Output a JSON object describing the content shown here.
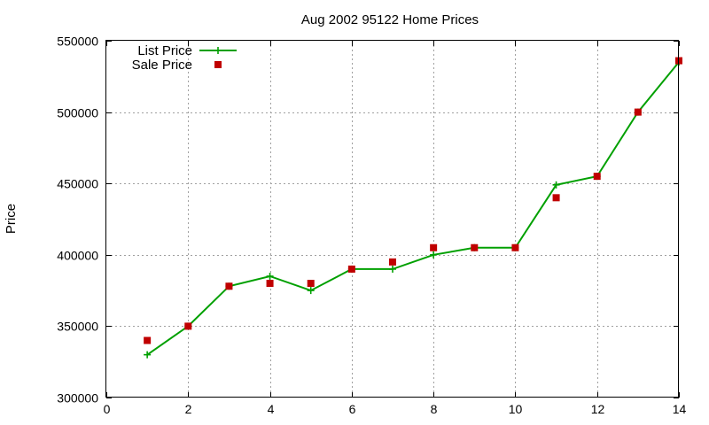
{
  "chart_data": {
    "type": "line",
    "title": "Aug 2002 95122 Home Prices",
    "xlabel": "",
    "ylabel": "Price",
    "xlim": [
      0,
      14
    ],
    "ylim": [
      300000,
      550000
    ],
    "xticks": [
      0,
      2,
      4,
      6,
      8,
      10,
      12,
      14
    ],
    "yticks": [
      300000,
      350000,
      400000,
      450000,
      500000,
      550000
    ],
    "grid": true,
    "legend_position": "top-left",
    "series": [
      {
        "name": "List Price",
        "style": "linespoints",
        "marker": "plus",
        "color": "#00a000",
        "x": [
          1,
          2,
          3,
          4,
          5,
          6,
          7,
          8,
          9,
          10,
          11,
          12,
          13,
          14
        ],
        "y": [
          330000,
          350000,
          378000,
          385000,
          375000,
          390000,
          390000,
          400000,
          405000,
          405000,
          449000,
          455000,
          500000,
          535000
        ]
      },
      {
        "name": "Sale Price",
        "style": "points",
        "marker": "square",
        "color": "#c00000",
        "x": [
          1,
          2,
          3,
          4,
          5,
          6,
          7,
          8,
          9,
          10,
          11,
          12,
          13,
          14
        ],
        "y": [
          340000,
          350000,
          378000,
          380000,
          380000,
          390000,
          395000,
          405000,
          405000,
          405000,
          440000,
          455000,
          500000,
          536000
        ]
      }
    ]
  }
}
